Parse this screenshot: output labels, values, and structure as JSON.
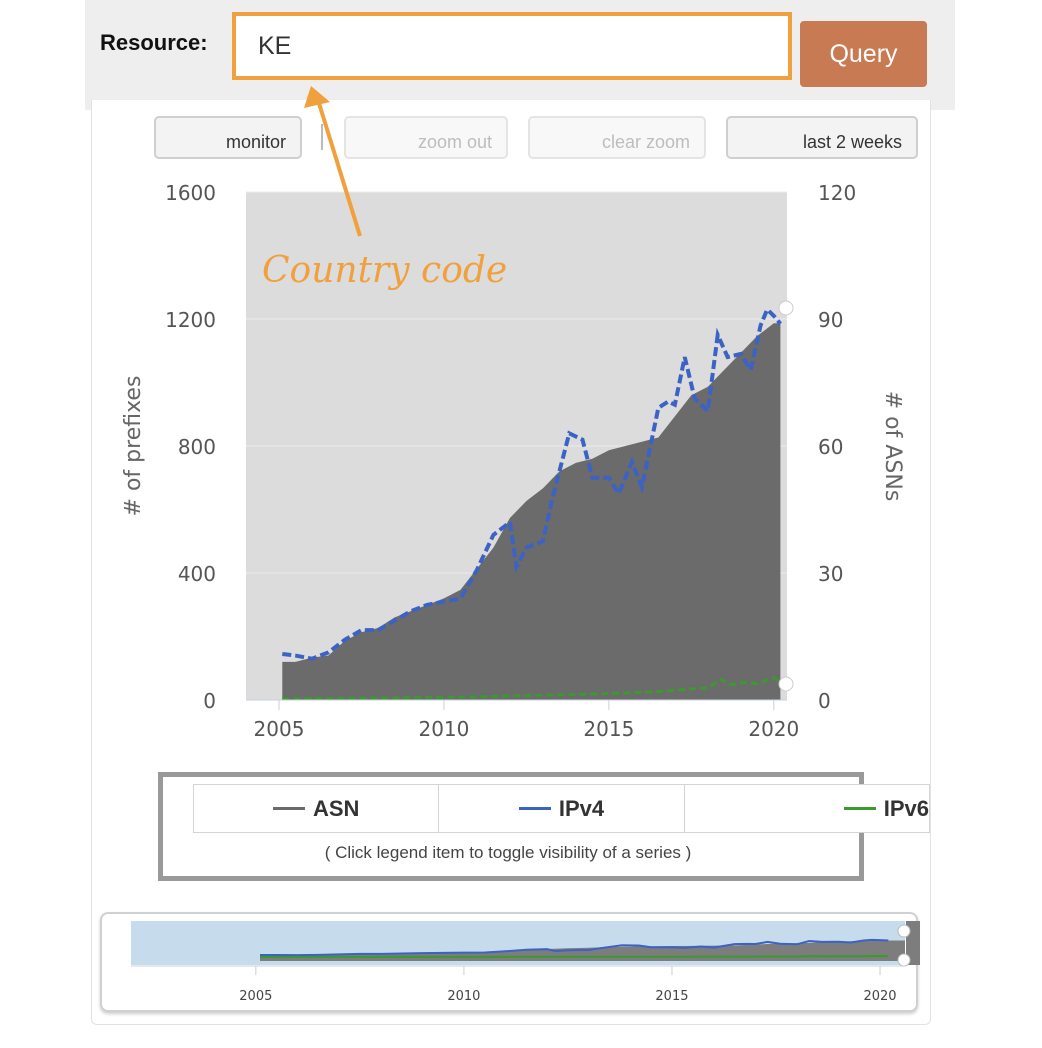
{
  "header": {
    "resource_label": "Resource:",
    "resource_value": "KE",
    "query_label": "Query"
  },
  "toolbar": {
    "monitor_label": "monitor",
    "zoom_out_label": "zoom out",
    "clear_zoom_label": "clear zoom",
    "period_label": "last 2 weeks"
  },
  "annotation": {
    "text": "Country code",
    "color": "#f0a03c"
  },
  "legend": {
    "items": [
      {
        "label": "ASN",
        "color": "#6b6b6b"
      },
      {
        "label": "IPv4",
        "color": "#3b62c4"
      },
      {
        "label": "IPv6",
        "color": "#3b9a2e"
      }
    ],
    "hint": "( Click legend item to toggle visibility of a series )"
  },
  "chart_data": {
    "type": "area",
    "ylabel_left": "# of prefixes",
    "ylabel_right": "# of ASNs",
    "xlim": [
      2004,
      2020.4
    ],
    "ylim_left": [
      0,
      1600
    ],
    "ylim_right": [
      0,
      120
    ],
    "x_ticks": [
      "2005",
      "2010",
      "2015",
      "2020"
    ],
    "y_ticks_left": [
      "0",
      "400",
      "800",
      "1200",
      "1600"
    ],
    "y_ticks_right": [
      "0",
      "30",
      "60",
      "90",
      "120"
    ],
    "grid": true,
    "series": [
      {
        "name": "ASN",
        "axis": "right",
        "style": "area",
        "color": "#6b6b6b",
        "x": [
          2005.1,
          2005.5,
          2006.0,
          2006.5,
          2007.0,
          2007.5,
          2008.0,
          2008.5,
          2009.0,
          2009.5,
          2010.0,
          2010.5,
          2011.0,
          2011.5,
          2012.0,
          2012.5,
          2013.0,
          2013.5,
          2014.0,
          2014.5,
          2015.0,
          2015.5,
          2016.0,
          2016.5,
          2017.0,
          2017.5,
          2018.0,
          2018.5,
          2019.0,
          2019.5,
          2020.0,
          2020.2
        ],
        "y": [
          9,
          9,
          10,
          10.5,
          14,
          16,
          17,
          19.5,
          21,
          22.5,
          24,
          26,
          31,
          36,
          43,
          47,
          50,
          54,
          56,
          57,
          59,
          60,
          61,
          62,
          67,
          72,
          74,
          78,
          82,
          86,
          89,
          89
        ]
      },
      {
        "name": "IPv4",
        "axis": "left",
        "style": "dashed",
        "color": "#3b62c4",
        "x": [
          2005.1,
          2005.5,
          2006.0,
          2006.5,
          2007.0,
          2007.5,
          2008.0,
          2008.5,
          2009.0,
          2009.5,
          2010.0,
          2010.5,
          2011.0,
          2011.5,
          2012.0,
          2012.2,
          2012.5,
          2013.0,
          2013.3,
          2013.8,
          2014.2,
          2014.5,
          2015.0,
          2015.3,
          2015.7,
          2016.0,
          2016.5,
          2016.8,
          2017.0,
          2017.3,
          2017.6,
          2018.0,
          2018.3,
          2018.6,
          2019.0,
          2019.3,
          2019.6,
          2019.8,
          2020.0,
          2020.2
        ],
        "y": [
          145,
          140,
          130,
          150,
          190,
          220,
          220,
          250,
          280,
          300,
          310,
          320,
          410,
          520,
          560,
          420,
          480,
          500,
          640,
          840,
          820,
          700,
          700,
          650,
          750,
          670,
          920,
          940,
          930,
          1080,
          950,
          910,
          1150,
          1080,
          1090,
          1040,
          1180,
          1230,
          1210,
          1185
        ]
      },
      {
        "name": "IPv6",
        "axis": "left",
        "style": "dashed",
        "color": "#3b9a2e",
        "x": [
          2005.1,
          2008.0,
          2011.0,
          2013.0,
          2015.0,
          2016.0,
          2017.0,
          2017.5,
          2018.0,
          2018.4,
          2018.7,
          2019.0,
          2019.5,
          2020.0,
          2020.2
        ],
        "y": [
          4,
          6,
          10,
          15,
          20,
          24,
          30,
          35,
          38,
          65,
          48,
          55,
          52,
          70,
          58
        ]
      }
    ]
  },
  "navigator": {
    "x_ticks": [
      "2005",
      "2010",
      "2015",
      "2020"
    ]
  }
}
